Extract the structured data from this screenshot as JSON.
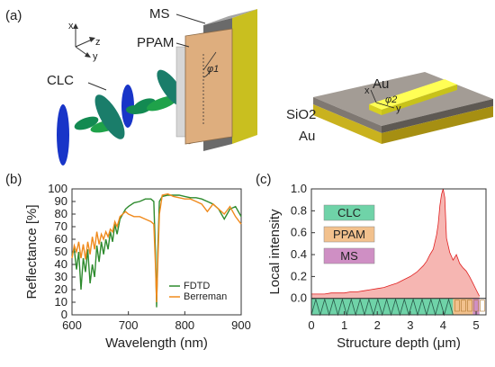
{
  "panel_a": {
    "label": "(a)",
    "axes": {
      "x": "x",
      "y": "y",
      "z": "z"
    },
    "labels": {
      "clc": "CLC",
      "ppam": "PPAM",
      "ms": "MS",
      "phi1": "φ1"
    },
    "inset": {
      "au_top": "Au",
      "x": "x",
      "y": "y",
      "phi2": "φ2",
      "sio2": "SiO2",
      "au_bottom": "Au"
    }
  },
  "chart_data": [
    {
      "panel": "(b)",
      "type": "line",
      "xlabel": "Wavelength (nm)",
      "ylabel": "Reflectance [%]",
      "xlim": [
        600,
        900
      ],
      "ylim": [
        0,
        100
      ],
      "xticks": [
        600,
        700,
        800,
        900
      ],
      "yticks": [
        0,
        10,
        20,
        30,
        40,
        50,
        60,
        70,
        80,
        90,
        100
      ],
      "legend_position": "bottom-right",
      "series": [
        {
          "name": "FDTD",
          "color": "#2e8b2e",
          "x": [
            600,
            604,
            608,
            612,
            616,
            620,
            624,
            628,
            632,
            636,
            640,
            644,
            648,
            652,
            656,
            660,
            664,
            668,
            672,
            676,
            680,
            685,
            690,
            695,
            700,
            710,
            720,
            730,
            740,
            745,
            748,
            750,
            752,
            755,
            760,
            770,
            780,
            790,
            800,
            810,
            820,
            830,
            840,
            850,
            860,
            870,
            880,
            890,
            900
          ],
          "y": [
            48,
            52,
            36,
            50,
            20,
            45,
            34,
            52,
            25,
            40,
            30,
            55,
            42,
            58,
            48,
            60,
            52,
            66,
            58,
            72,
            64,
            76,
            80,
            84,
            86,
            89,
            90,
            92,
            92,
            90,
            50,
            6,
            50,
            90,
            94,
            95,
            95,
            95,
            94,
            93,
            93,
            92,
            90,
            88,
            84,
            76,
            84,
            86,
            78
          ]
        },
        {
          "name": "Berreman",
          "color": "#f08a1c",
          "x": [
            600,
            604,
            608,
            612,
            616,
            620,
            624,
            628,
            632,
            636,
            640,
            644,
            648,
            652,
            656,
            660,
            664,
            668,
            672,
            676,
            680,
            685,
            690,
            695,
            700,
            710,
            720,
            730,
            740,
            745,
            748,
            750,
            752,
            755,
            760,
            770,
            780,
            790,
            800,
            810,
            820,
            830,
            840,
            850,
            860,
            870,
            880,
            890,
            900
          ],
          "y": [
            45,
            55,
            50,
            58,
            45,
            56,
            44,
            58,
            48,
            62,
            52,
            66,
            56,
            64,
            60,
            66,
            62,
            68,
            66,
            74,
            70,
            78,
            80,
            82,
            80,
            78,
            78,
            76,
            74,
            72,
            40,
            10,
            40,
            80,
            95,
            96,
            94,
            93,
            92,
            92,
            90,
            88,
            82,
            88,
            84,
            80,
            86,
            78,
            72
          ]
        }
      ]
    },
    {
      "panel": "(c)",
      "type": "area",
      "xlabel": "Structure depth (μm)",
      "ylabel": "Local intensity",
      "xlim": [
        0,
        5.3
      ],
      "ylim": [
        -0.15,
        1.0
      ],
      "xticks": [
        0,
        1,
        2,
        3,
        4,
        5
      ],
      "yticks": [
        0.0,
        0.2,
        0.4,
        0.6,
        0.8,
        1.0
      ],
      "legend": [
        "CLC",
        "PPAM",
        "MS"
      ],
      "legend_colors": [
        "#6fd3a8",
        "#f2c18d",
        "#cf8fc4"
      ],
      "series": [
        {
          "name": "intensity",
          "color": "#e02020",
          "fill": "#f6b6b2",
          "x": [
            0,
            0.2,
            0.4,
            0.6,
            0.8,
            1.0,
            1.2,
            1.4,
            1.6,
            1.8,
            2.0,
            2.2,
            2.4,
            2.6,
            2.8,
            3.0,
            3.2,
            3.4,
            3.5,
            3.6,
            3.7,
            3.8,
            3.85,
            3.9,
            3.95,
            4.0,
            4.05,
            4.1,
            4.2,
            4.3,
            4.4,
            4.5,
            4.6,
            4.7,
            4.8,
            4.9,
            5.0,
            5.1
          ],
          "y": [
            0.04,
            0.04,
            0.04,
            0.05,
            0.05,
            0.05,
            0.06,
            0.06,
            0.07,
            0.08,
            0.09,
            0.1,
            0.12,
            0.14,
            0.17,
            0.2,
            0.24,
            0.3,
            0.34,
            0.4,
            0.45,
            0.58,
            0.68,
            0.85,
            0.95,
            1.0,
            0.92,
            0.55,
            0.42,
            0.35,
            0.4,
            0.32,
            0.28,
            0.25,
            0.2,
            0.14,
            0.08,
            0.02
          ]
        }
      ],
      "regions": {
        "clc_end": 4.3,
        "ppam_end": 4.9,
        "ms_end": 5.1
      }
    }
  ]
}
